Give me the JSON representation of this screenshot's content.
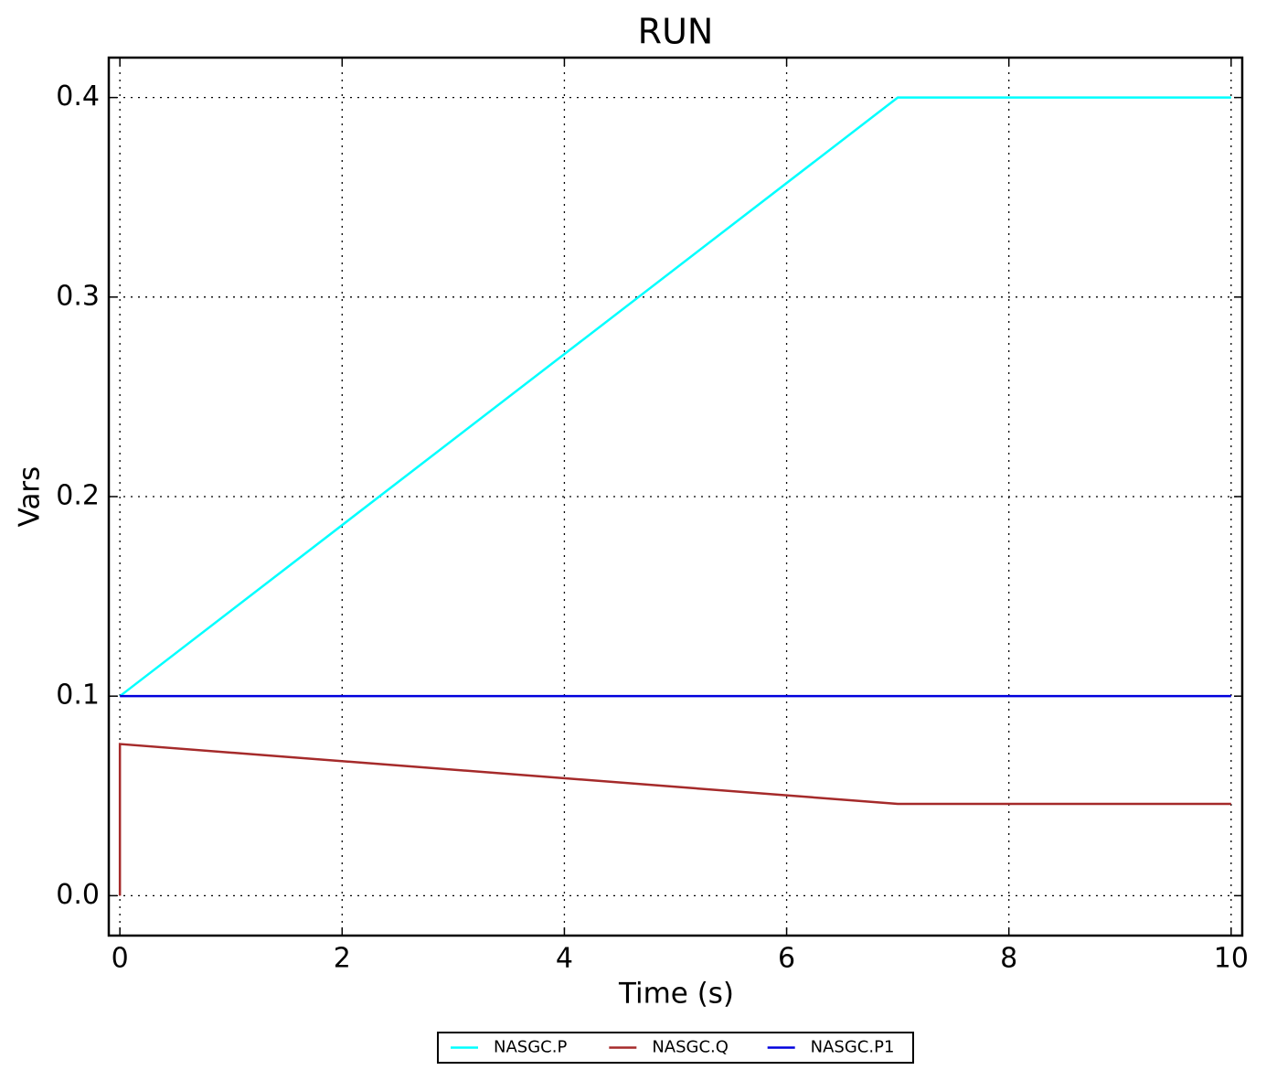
{
  "chart_data": {
    "type": "line",
    "title": "RUN",
    "x_label": "Time (s)",
    "y_label": "Vars",
    "xlim": [
      -0.1,
      10.1
    ],
    "ylim": [
      -0.02,
      0.42
    ],
    "xticks": [
      0,
      2,
      4,
      6,
      8,
      10
    ],
    "yticks": [
      {
        "value": 0,
        "label": "0.0"
      },
      {
        "value": 0.1,
        "label": "0.1"
      },
      {
        "value": 0.2,
        "label": "0.2"
      },
      {
        "value": 0.3,
        "label": "0.3"
      },
      {
        "value": 0.4,
        "label": "0.4"
      }
    ],
    "grid": true,
    "legend": "bottom",
    "series": [
      {
        "name": "NASGC.P",
        "color": "#00ffff",
        "x": [
          0,
          7,
          10
        ],
        "values": [
          0.1,
          0.4,
          0.4
        ]
      },
      {
        "name": "NASGC.Q",
        "color": "#a52a2a",
        "x": [
          0,
          0,
          7,
          10
        ],
        "values": [
          0,
          0.076,
          0.046,
          0.046
        ]
      },
      {
        "name": "NASGC.P1",
        "color": "#0000dd",
        "x": [
          0,
          10
        ],
        "values": [
          0.1,
          0.1
        ]
      }
    ]
  }
}
